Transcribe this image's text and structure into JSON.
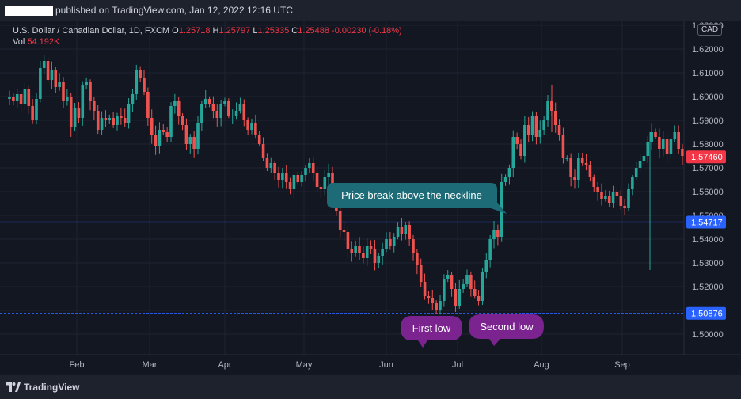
{
  "header": {
    "published_text": "published on TradingView.com, Jan 12, 2022 12:16 UTC"
  },
  "legend": {
    "symbol": "U.S. Dollar / Canadian Dollar, 1D, FXCM",
    "open_label": "O",
    "open": "1.25718",
    "high_label": "H",
    "high": "1.25797",
    "low_label": "L",
    "low": "1.25335",
    "close_label": "C",
    "close": "1.25488",
    "change": "-0.00230 (-0.18%)",
    "vol_label": "Vol",
    "vol": "54.192K"
  },
  "currency_badge": "CAD",
  "footer": {
    "brand": "TradingView"
  },
  "colors": {
    "up": "#26a69a",
    "down": "#ef5350",
    "hline": "#2962ff",
    "callout_teal": "#1c6b76",
    "callout_purple": "#7b2490",
    "price_badge_red": "#f23645",
    "price_badge_blue": "#2962ff"
  },
  "chart_data": {
    "type": "candlestick",
    "x_tick_labels": [
      "Feb",
      "Mar",
      "Apr",
      "May",
      "Jun",
      "Jul",
      "Aug",
      "Sep"
    ],
    "y_ticks": [
      "1.50000",
      "1.51000",
      "1.52000",
      "1.53000",
      "1.54000",
      "1.55000",
      "1.56000",
      "1.57000",
      "1.58000",
      "1.59000",
      "1.60000",
      "1.61000",
      "1.62000",
      "1.63000"
    ],
    "ylim": [
      1.495,
      1.633
    ],
    "price_labels": [
      {
        "value": 1.5746,
        "text": "1.57460",
        "color": "#f23645"
      },
      {
        "value": 1.54717,
        "text": "1.54717",
        "color": "#2962ff"
      },
      {
        "value": 1.50876,
        "text": "1.50876",
        "color": "#2962ff"
      }
    ],
    "horizontal_lines": [
      {
        "value": 1.54717,
        "style": "solid"
      },
      {
        "value": 1.50876,
        "style": "dashed"
      }
    ],
    "annotations": [
      {
        "text": "Price break above the neckline",
        "anchor_value": 1.5505
      },
      {
        "text": "First low",
        "anchor_value": 1.506
      },
      {
        "text": "Second low",
        "anchor_value": 1.5095
      }
    ],
    "close_path": [
      1.6,
      1.598,
      1.601,
      1.597,
      1.603,
      1.596,
      1.59,
      1.599,
      1.612,
      1.615,
      1.607,
      1.611,
      1.604,
      1.606,
      1.598,
      1.6,
      1.587,
      1.595,
      1.591,
      1.605,
      1.606,
      1.598,
      1.594,
      1.586,
      1.591,
      1.59,
      1.591,
      1.588,
      1.592,
      1.591,
      1.589,
      1.597,
      1.601,
      1.611,
      1.608,
      1.602,
      1.591,
      1.584,
      1.579,
      1.586,
      1.585,
      1.583,
      1.596,
      1.598,
      1.592,
      1.588,
      1.58,
      1.583,
      1.578,
      1.589,
      1.597,
      1.599,
      1.597,
      1.594,
      1.591,
      1.597,
      1.598,
      1.592,
      1.592,
      1.594,
      1.597,
      1.59,
      1.586,
      1.589,
      1.584,
      1.58,
      1.574,
      1.57,
      1.572,
      1.568,
      1.565,
      1.568,
      1.564,
      1.561,
      1.567,
      1.564,
      1.567,
      1.57,
      1.572,
      1.568,
      1.562,
      1.561,
      1.566,
      1.568,
      1.557,
      1.552,
      1.544,
      1.543,
      1.536,
      1.534,
      1.537,
      1.534,
      1.532,
      1.537,
      1.536,
      1.53,
      1.533,
      1.536,
      1.54,
      1.537,
      1.541,
      1.545,
      1.542,
      1.546,
      1.54,
      1.534,
      1.529,
      1.522,
      1.516,
      1.515,
      1.513,
      1.51,
      1.514,
      1.523,
      1.525,
      1.519,
      1.512,
      1.519,
      1.521,
      1.525,
      1.519,
      1.516,
      1.514,
      1.526,
      1.531,
      1.54,
      1.544,
      1.541,
      1.564,
      1.566,
      1.57,
      1.583,
      1.58,
      1.575,
      1.588,
      1.584,
      1.592,
      1.583,
      1.586,
      1.59,
      1.598,
      1.594,
      1.588,
      1.584,
      1.574,
      1.574,
      1.566,
      1.565,
      1.574,
      1.572,
      1.571,
      1.566,
      1.562,
      1.56,
      1.557,
      1.558,
      1.555,
      1.56,
      1.558,
      1.554,
      1.553,
      1.561,
      1.566,
      1.57,
      1.573,
      1.575,
      1.581,
      1.585,
      1.583,
      1.578,
      1.582,
      1.576,
      1.582,
      1.585,
      1.578,
      1.575
    ]
  }
}
